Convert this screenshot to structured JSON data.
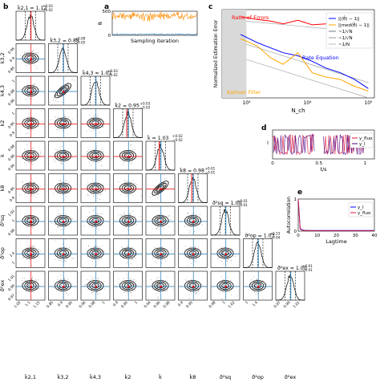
{
  "panel_labels": {
    "b": "b",
    "a": "a",
    "c": "c",
    "d": "d",
    "e": "e"
  },
  "chart_data": [
    {
      "panel": "b",
      "type": "scatter",
      "title": "",
      "params": [
        {
          "label": "k21",
          "axis_label": "k̃2,1",
          "title": "k̃2,1 = 1.12",
          "sup": "+0.03",
          "sub": "−0.02",
          "ticks": [
            1.05,
            1.1,
            1.15
          ],
          "true_value": 1.1,
          "posterior_mean": 1.12
        },
        {
          "label": "k32",
          "axis_label": "k̃3,2",
          "title": "k̃3,2 = 0.88",
          "sup": "+0.09",
          "sub": "−0.05",
          "ticks": [
            0.85,
            0.9,
            0.95
          ],
          "true_value": 0.9,
          "posterior_mean": 0.88
        },
        {
          "label": "k43",
          "axis_label": "k̃4,3",
          "title": "k̃4,3 = 1.01",
          "sup": "+0.03",
          "sub": "−0.02",
          "ticks": [
            0.96,
            0.98,
            1.0,
            1.02,
            1.04
          ],
          "true_value": 1.0,
          "posterior_mean": 1.01
        },
        {
          "label": "k2",
          "axis_label": "k̃2",
          "title": "k̃2 = 0.95",
          "sup": "+0.03",
          "sub": "−0.03",
          "ticks": [
            0.9,
            0.95,
            1.0
          ],
          "true_value": 0.95,
          "posterior_mean": 0.95
        },
        {
          "label": "k",
          "axis_label": "k̃",
          "title": "k̃ = 1.03",
          "sup": "+0.02",
          "sub": "−0.02",
          "ticks": [
            0.94,
            0.96,
            0.98,
            1.0,
            1.02
          ],
          "true_value": 1.0,
          "posterior_mean": 1.03
        },
        {
          "label": "k8",
          "axis_label": "k̃8",
          "title": "k̃8 = 0.98",
          "sup": "+0.01",
          "sub": "−0.01",
          "ticks": [
            0.9,
            0.95
          ],
          "true_value": 0.96,
          "posterior_mean": 0.98
        },
        {
          "label": "sigma_sq",
          "axis_label": "σ̃²sq",
          "title": "σ̃²sq = 1.00",
          "sup": "+0.01",
          "sub": "−0.01",
          "ticks": [
            0.98,
            1.0,
            1.02
          ],
          "true_value": 1.0,
          "posterior_mean": 1.0
        },
        {
          "label": "sigma_op",
          "axis_label": "σ̃²op",
          "title": "σ̃²op = 1.03",
          "sup": "+0.23",
          "sub": "−0.04",
          "ticks": [
            1.0,
            1.4
          ],
          "true_value": 1.0,
          "posterior_mean": 1.03
        },
        {
          "label": "sigma_ex",
          "axis_label": "σ̃²ex",
          "title": "σ̃²ex = 1.00",
          "sup": "+0.01",
          "sub": "−0.01",
          "ticks": [
            0.97,
            0.99,
            1.01,
            1.03
          ],
          "true_value": 1.0,
          "posterior_mean": 1.0
        }
      ]
    },
    {
      "panel": "a",
      "type": "line",
      "title": "",
      "xlabel": "Sampling iteration",
      "ylabel": "θᵢ",
      "ylim": [
        0,
        500
      ],
      "yticks": [
        0,
        500
      ],
      "series": [
        {
          "color": "#ff8c00",
          "values": [
            400
          ]
        },
        {
          "color": "#1f77b4",
          "values": [
            20
          ]
        }
      ]
    },
    {
      "panel": "c",
      "type": "line",
      "xlabel": "N_ch",
      "ylabel": "Normalized Estimation Error",
      "x_scale": "log",
      "y_scale": "log",
      "xticks": [
        "10³",
        "10⁴",
        "10⁵"
      ],
      "annotations": [
        {
          "text": "Ratio of Errors",
          "color": "#ff0000"
        },
        {
          "text": "Rate Equation",
          "color": "#0000ff"
        },
        {
          "text": "Kalman Filter",
          "color": "#ffa500"
        }
      ],
      "legend": [
        "||⟨θ̂⟩ − 1||",
        "||med(θ̂) − 1||",
        "~1/√N",
        "~1/√N",
        "~1/N"
      ],
      "series": [
        {
          "color": "#ff0000",
          "x": [
            800,
            1500,
            2500,
            4000,
            7000,
            12000,
            20000,
            35000,
            60000,
            100000
          ],
          "y": [
            2.6,
            2.2,
            2.0,
            1.7,
            2.1,
            1.6,
            1.7,
            1.3,
            1.2,
            0.7
          ]
        },
        {
          "color": "#0000ff",
          "x": [
            800,
            1500,
            2500,
            4000,
            7000,
            12000,
            20000,
            35000,
            60000,
            100000
          ],
          "y": [
            0.9,
            0.55,
            0.4,
            0.3,
            0.25,
            0.18,
            0.12,
            0.09,
            0.06,
            0.035
          ]
        },
        {
          "color": "#ffa500",
          "x": [
            800,
            1500,
            2500,
            4000,
            7000,
            12000,
            20000,
            35000,
            60000,
            100000
          ],
          "y": [
            0.7,
            0.45,
            0.22,
            0.15,
            0.3,
            0.09,
            0.07,
            0.06,
            0.04,
            0.03
          ]
        }
      ]
    },
    {
      "panel": "d",
      "type": "line",
      "xlabel": "t/s",
      "ylabel": "I",
      "xticks": [
        0.0,
        0.5,
        1.0
      ],
      "xlim": [
        0,
        1.1
      ],
      "legend": [
        "y_fluo",
        "y_I"
      ],
      "series": [
        {
          "name": "y_fluo",
          "color": "#dc143c"
        },
        {
          "name": "y_I",
          "color": "#4b0082"
        }
      ]
    },
    {
      "panel": "e",
      "type": "line",
      "xlabel": "Lagtime",
      "ylabel": "Autocorrelation",
      "xticks": [
        0,
        10,
        20,
        30,
        40
      ],
      "yticks": [
        0,
        1
      ],
      "xlim": [
        0,
        40
      ],
      "ylim": [
        0,
        1
      ],
      "legend": [
        "y_I",
        "y_fluo"
      ],
      "series": [
        {
          "name": "y_I",
          "color": "#0000ff",
          "x": [
            0,
            1,
            2,
            3,
            5,
            10,
            20,
            30,
            40
          ],
          "y": [
            1.0,
            0.08,
            0.04,
            0.03,
            0.02,
            0.02,
            0.02,
            0.02,
            0.02
          ]
        },
        {
          "name": "y_fluo",
          "color": "#dc143c",
          "x": [
            0,
            1,
            2,
            3,
            5,
            10,
            20,
            30,
            40
          ],
          "y": [
            1.0,
            0.06,
            0.03,
            0.02,
            0.02,
            0.01,
            0.01,
            0.01,
            0.01
          ]
        }
      ]
    }
  ]
}
